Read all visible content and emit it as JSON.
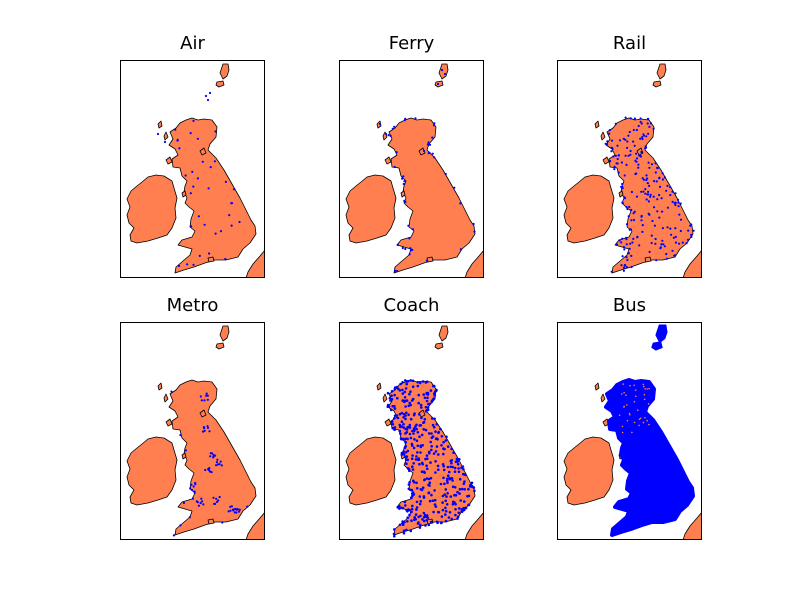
{
  "colors": {
    "land": "#ff7f50",
    "coast": "#000000",
    "points": "#0000ff",
    "frame": "#000000",
    "sea": "#ffffff"
  },
  "panels": [
    {
      "title": "Air",
      "density": "sparse"
    },
    {
      "title": "Ferry",
      "density": "coastal"
    },
    {
      "title": "Rail",
      "density": "medium"
    },
    {
      "title": "Metro",
      "density": "urban"
    },
    {
      "title": "Coach",
      "density": "dense"
    },
    {
      "title": "Bus",
      "density": "full"
    }
  ]
}
